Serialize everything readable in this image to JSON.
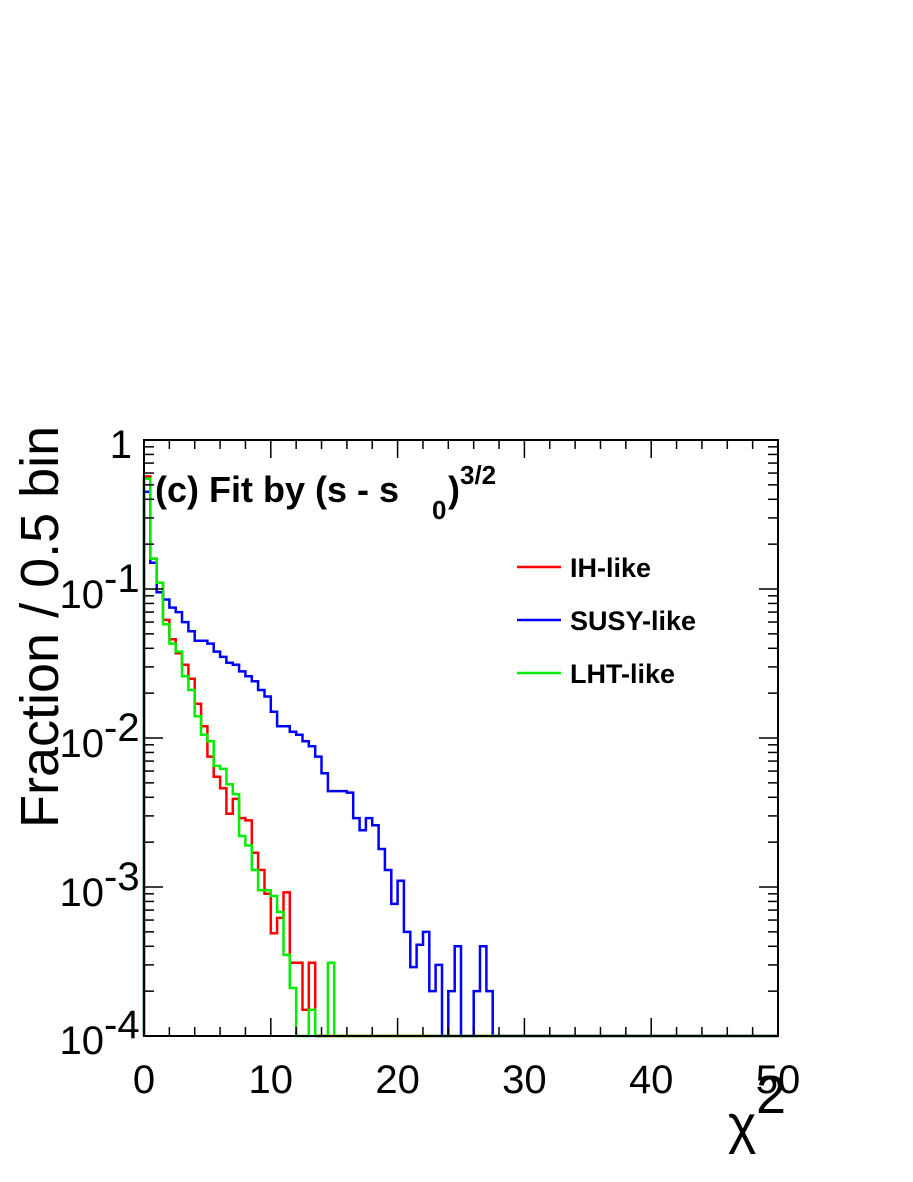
{
  "chart_data": {
    "type": "line",
    "title": "",
    "annotation": {
      "main": "(c) Fit by (s - s",
      "subscript": "0",
      "close": ")",
      "superscript": "3/2"
    },
    "xlabel": {
      "base": "χ",
      "sup": "2"
    },
    "ylabel": "Fraction / 0.5 bin",
    "xlim": [
      0,
      50
    ],
    "ylim": [
      0.0001,
      1
    ],
    "yscale": "log",
    "grid": false,
    "legend_position": "top-right",
    "bin_width": 0.5,
    "x_ticks": [
      "0",
      "10",
      "20",
      "30",
      "40",
      "50"
    ],
    "y_ticks": [
      {
        "value": 1,
        "base": "1",
        "exp": ""
      },
      {
        "value": 0.1,
        "base": "10",
        "exp": "-1"
      },
      {
        "value": 0.01,
        "base": "10",
        "exp": "-2"
      },
      {
        "value": 0.001,
        "base": "10",
        "exp": "-3"
      },
      {
        "value": 0.0001,
        "base": "10",
        "exp": "-4"
      }
    ],
    "series": [
      {
        "name": "IH-like",
        "color": "#ff0000",
        "bin_start": 0,
        "values": [
          0.57,
          0.16,
          0.11,
          0.062,
          0.046,
          0.037,
          0.031,
          0.025,
          0.017,
          0.012,
          0.0075,
          0.0055,
          0.0046,
          0.0031,
          0.0039,
          0.0029,
          0.0028,
          0.0017,
          0.0013,
          0.0009,
          0.00049,
          0.00062,
          0.00092,
          0.00031,
          0.00031,
          0.00015,
          0.00031,
          0.0001,
          0.0001,
          0.0001
        ]
      },
      {
        "name": "SUSY-like",
        "color": "#0000ff",
        "bin_start": 0,
        "values": [
          0.45,
          0.15,
          0.095,
          0.085,
          0.075,
          0.07,
          0.06,
          0.052,
          0.045,
          0.045,
          0.043,
          0.038,
          0.035,
          0.032,
          0.031,
          0.028,
          0.026,
          0.024,
          0.021,
          0.019,
          0.015,
          0.012,
          0.012,
          0.011,
          0.0105,
          0.0095,
          0.0088,
          0.0075,
          0.0058,
          0.0044,
          0.0044,
          0.0044,
          0.0043,
          0.0029,
          0.0024,
          0.0029,
          0.0026,
          0.0018,
          0.0013,
          0.00077,
          0.0011,
          0.0005,
          0.00029,
          0.00041,
          0.0005,
          0.0002,
          0.0003,
          0.0001,
          0.0002,
          0.0004,
          0.0001,
          0.0001,
          0.0002,
          0.0004,
          0.0002,
          0.0001
        ]
      },
      {
        "name": "LHT-like",
        "color": "#00ee00",
        "bin_start": 0,
        "values": [
          0.55,
          0.16,
          0.11,
          0.058,
          0.043,
          0.038,
          0.026,
          0.021,
          0.014,
          0.0105,
          0.0095,
          0.0065,
          0.0062,
          0.0049,
          0.0042,
          0.0022,
          0.0019,
          0.0013,
          0.00095,
          0.00095,
          0.00087,
          0.00068,
          0.00035,
          0.00021,
          0.0001,
          0.0001,
          0.00015,
          0.0001,
          0.0001,
          0.00031,
          0.0001
        ]
      }
    ]
  }
}
